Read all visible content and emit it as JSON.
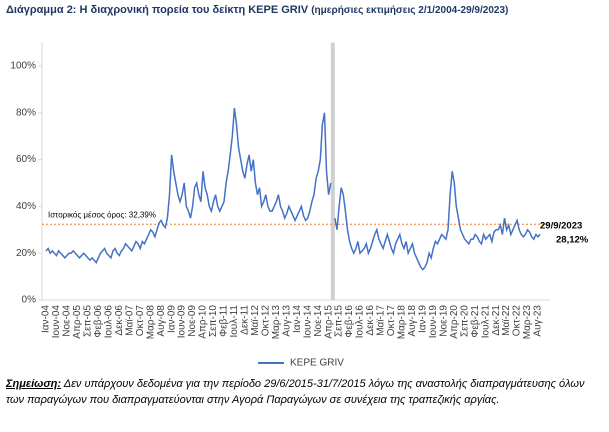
{
  "chart_data": {
    "type": "line",
    "title": "Διάγραμμα 2: Η διαχρονική πορεία του δείκτη ΚΕΡΕ GRIV",
    "subtitle": "(ημερήσιες εκτιμήσεις 2/1/2004-29/9/2023)",
    "categories": [
      "Ιαν-04",
      null,
      null,
      null,
      null,
      "Ιουν-04",
      null,
      null,
      null,
      null,
      "Νοε-04",
      null,
      null,
      null,
      null,
      "Απρ-05",
      null,
      null,
      null,
      null,
      "Σεπ-05",
      null,
      null,
      null,
      null,
      "Φεβ-06",
      null,
      null,
      null,
      null,
      "Ιουλ-06",
      null,
      null,
      null,
      null,
      "Δεκ-06",
      null,
      null,
      null,
      null,
      "Μαϊ-07",
      null,
      null,
      null,
      null,
      "Οκτ-07",
      null,
      null,
      null,
      null,
      "Μαρ-08",
      null,
      null,
      null,
      null,
      "Αυγ-08",
      null,
      null,
      null,
      null,
      "Ιαν-09",
      null,
      null,
      null,
      null,
      "Ιουν-09",
      null,
      null,
      null,
      null,
      "Νοε-09",
      null,
      null,
      null,
      null,
      "Απρ-10",
      null,
      null,
      null,
      null,
      "Σεπ-10",
      null,
      null,
      null,
      null,
      "Φεβ-11",
      null,
      null,
      null,
      null,
      "Ιουλ-11",
      null,
      null,
      null,
      null,
      "Δεκ-11",
      null,
      null,
      null,
      null,
      "Μαϊ-12",
      null,
      null,
      null,
      null,
      "Οκτ-12",
      null,
      null,
      null,
      null,
      "Μαρ-13",
      null,
      null,
      null,
      null,
      "Αυγ-13",
      null,
      null,
      null,
      null,
      "Ιαν-14",
      null,
      null,
      null,
      null,
      "Ιουν-14",
      null,
      null,
      null,
      null,
      "Νοε-14",
      null,
      null,
      null,
      null,
      "Απρ-15",
      null,
      null,
      null,
      null,
      "Σεπ-15",
      null,
      null,
      null,
      null,
      "Φεβ-16",
      null,
      null,
      null,
      null,
      "Ιουλ-16",
      null,
      null,
      null,
      null,
      "Δεκ-16",
      null,
      null,
      null,
      null,
      "Μαϊ-17",
      null,
      null,
      null,
      null,
      "Οκτ-17",
      null,
      null,
      null,
      null,
      "Μαρ-18",
      null,
      null,
      null,
      null,
      "Αυγ-18",
      null,
      null,
      null,
      null,
      "Ιαν-19",
      null,
      null,
      null,
      null,
      "Ιουν-19",
      null,
      null,
      null,
      null,
      "Νοε-19",
      null,
      null,
      null,
      null,
      "Απρ-20",
      null,
      null,
      null,
      null,
      "Σεπ-20",
      null,
      null,
      null,
      null,
      "Φεβ-21",
      null,
      null,
      null,
      null,
      "Ιουλ-21",
      null,
      null,
      null,
      null,
      "Δεκ-21",
      null,
      null,
      null,
      null,
      "Μαϊ-22",
      null,
      null,
      null,
      null,
      "Οκτ-22",
      null,
      null,
      null,
      null,
      "Μαρ-23",
      null,
      null,
      null,
      null,
      "Αυγ-23",
      null
    ],
    "series": [
      {
        "name": "ΚΕΡΕ GRIV",
        "color": "#4472c4",
        "values": [
          21,
          22,
          20,
          21,
          20,
          19,
          21,
          20,
          19,
          18,
          19,
          20,
          20,
          21,
          20,
          19,
          18,
          19,
          20,
          19,
          18,
          17,
          18,
          17,
          16,
          18,
          20,
          21,
          22,
          20,
          19,
          18,
          21,
          22,
          20,
          19,
          21,
          22,
          24,
          23,
          22,
          21,
          23,
          25,
          24,
          22,
          25,
          24,
          26,
          28,
          30,
          29,
          27,
          30,
          33,
          34,
          32,
          31,
          35,
          45,
          62,
          55,
          50,
          45,
          42,
          45,
          50,
          40,
          38,
          35,
          40,
          48,
          50,
          45,
          42,
          55,
          48,
          45,
          40,
          38,
          42,
          45,
          40,
          38,
          40,
          42,
          50,
          55,
          62,
          70,
          82,
          75,
          65,
          60,
          55,
          52,
          58,
          62,
          55,
          60,
          50,
          45,
          48,
          40,
          42,
          45,
          40,
          38,
          38,
          40,
          42,
          45,
          40,
          38,
          35,
          37,
          40,
          38,
          36,
          34,
          36,
          38,
          40,
          36,
          34,
          35,
          38,
          42,
          45,
          52,
          55,
          60,
          75,
          80,
          55,
          45,
          50,
          null,
          35,
          30,
          40,
          48,
          45,
          38,
          30,
          25,
          22,
          20,
          22,
          25,
          20,
          21,
          22,
          24,
          20,
          22,
          25,
          28,
          30,
          26,
          24,
          22,
          25,
          28,
          25,
          22,
          20,
          24,
          26,
          28,
          24,
          22,
          25,
          20,
          22,
          24,
          20,
          18,
          16,
          14,
          13,
          14,
          16,
          20,
          18,
          22,
          25,
          24,
          26,
          28,
          27,
          26,
          30,
          45,
          55,
          50,
          40,
          35,
          30,
          28,
          26,
          25,
          24,
          26,
          26,
          28,
          27,
          25,
          24,
          28,
          26,
          27,
          28,
          25,
          29,
          30,
          30,
          32,
          28,
          35,
          30,
          32,
          28,
          30,
          32,
          34,
          30,
          28,
          27,
          28,
          30,
          29,
          27,
          26,
          28,
          27,
          28.12
        ]
      }
    ],
    "ylim": [
      0,
      110
    ],
    "yticks": [
      {
        "value": 0,
        "label": "0%"
      },
      {
        "value": 20,
        "label": "20%"
      },
      {
        "value": 40,
        "label": "40%"
      },
      {
        "value": 60,
        "label": "60%"
      },
      {
        "value": 80,
        "label": "80%"
      },
      {
        "value": 100,
        "label": "100%"
      }
    ],
    "mean": {
      "value": 32.39,
      "label": "Ιστορικός μέσος όρος: 32,39%",
      "color": "#ed7d31"
    },
    "end_label": {
      "date": "29/9/2023",
      "value": 28.12,
      "label": "28,12%"
    },
    "legend": "bottom"
  },
  "note": {
    "label": "Σημείωση:",
    "text": "Δεν υπάρχουν δεδομένα για την περίοδο 29/6/2015-31/7/2015 λόγω της αναστολής διαπραγμάτευσης όλων των παραγώγων που διαπραγματεύονται στην Αγορά Παραγώγων σε συνέχεια της τραπεζικής αργίας."
  }
}
